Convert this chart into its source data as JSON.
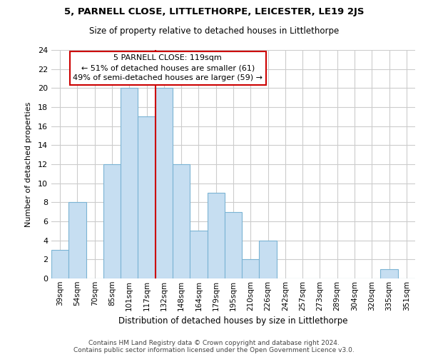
{
  "title": "5, PARNELL CLOSE, LITTLETHORPE, LEICESTER, LE19 2JS",
  "subtitle": "Size of property relative to detached houses in Littlethorpe",
  "xlabel": "Distribution of detached houses by size in Littlethorpe",
  "ylabel": "Number of detached properties",
  "bin_labels": [
    "39sqm",
    "54sqm",
    "70sqm",
    "85sqm",
    "101sqm",
    "117sqm",
    "132sqm",
    "148sqm",
    "164sqm",
    "179sqm",
    "195sqm",
    "210sqm",
    "226sqm",
    "242sqm",
    "257sqm",
    "273sqm",
    "289sqm",
    "304sqm",
    "320sqm",
    "335sqm",
    "351sqm"
  ],
  "bar_heights": [
    3,
    8,
    0,
    12,
    20,
    17,
    20,
    12,
    5,
    9,
    7,
    2,
    4,
    0,
    0,
    0,
    0,
    0,
    0,
    1,
    0
  ],
  "bar_color": "#c6def1",
  "bar_edge_color": "#7bb4d4",
  "vline_x": 5.5,
  "vline_color": "#cc0000",
  "annotation_title": "5 PARNELL CLOSE: 119sqm",
  "annotation_line1": "← 51% of detached houses are smaller (61)",
  "annotation_line2": "49% of semi-detached houses are larger (59) →",
  "ylim": [
    0,
    24
  ],
  "yticks": [
    0,
    2,
    4,
    6,
    8,
    10,
    12,
    14,
    16,
    18,
    20,
    22,
    24
  ],
  "footer1": "Contains HM Land Registry data © Crown copyright and database right 2024.",
  "footer2": "Contains public sector information licensed under the Open Government Licence v3.0.",
  "bg_color": "#ffffff",
  "grid_color": "#cccccc"
}
